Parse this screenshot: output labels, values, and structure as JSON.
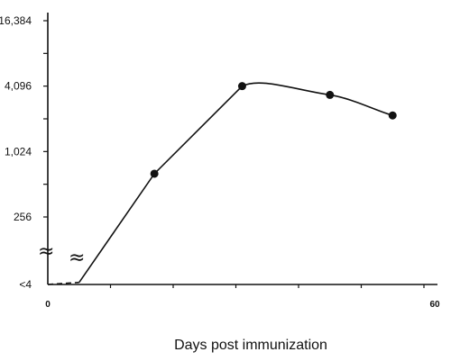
{
  "chart_data": {
    "type": "line",
    "title": "",
    "xlabel": "Days post immunization",
    "ylabel": "",
    "x_tick_labels": [
      {
        "value": 0,
        "label": "0"
      },
      {
        "value": 60,
        "label": "60"
      }
    ],
    "y_tick_labels": [
      {
        "value": 4,
        "label": "<4"
      },
      {
        "value": 256,
        "label": "256"
      },
      {
        "value": 1024,
        "label": "1,024"
      },
      {
        "value": 4096,
        "label": "4,096"
      },
      {
        "value": 16384,
        "label": "16,384"
      }
    ],
    "y_scale": "log",
    "axis_break": "≈",
    "xlim": [
      0,
      60
    ],
    "ylim": [
      4,
      16384
    ],
    "grid": false,
    "series": [
      {
        "points": [
          {
            "x": 17,
            "y": 640
          },
          {
            "x": 31,
            "y": 4096
          },
          {
            "x": 45,
            "y": 3400
          },
          {
            "x": 55,
            "y": 2200
          }
        ],
        "style": "solid"
      },
      {
        "points": [
          {
            "x": 0,
            "y": 4
          },
          {
            "x": 5,
            "y": 64
          }
        ],
        "style": "dashed"
      }
    ]
  }
}
